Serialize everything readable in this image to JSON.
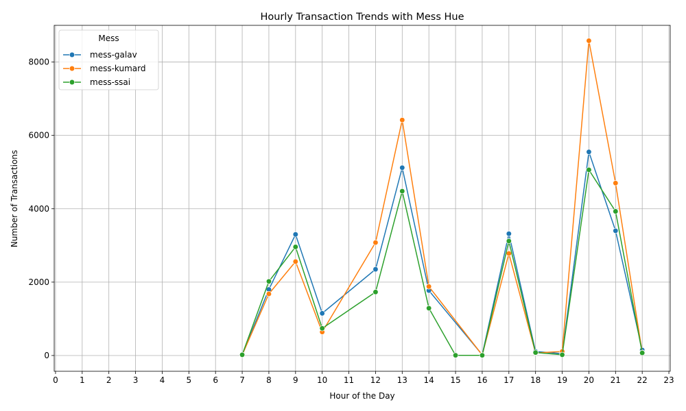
{
  "chart_data": {
    "type": "line",
    "title": "Hourly Transaction Trends with Mess Hue",
    "xlabel": "Hour of the Day",
    "ylabel": "Number of Transactions",
    "xlim": [
      -0.05,
      23.05
    ],
    "ylim": [
      -430,
      9000
    ],
    "xticks": [
      0,
      1,
      2,
      3,
      4,
      5,
      6,
      7,
      8,
      9,
      10,
      11,
      12,
      13,
      14,
      15,
      16,
      17,
      18,
      19,
      20,
      21,
      22,
      23
    ],
    "yticks": [
      0,
      2000,
      4000,
      6000,
      8000
    ],
    "grid": true,
    "legend": {
      "title": "Mess",
      "placement": "top-left"
    },
    "series": [
      {
        "name": "mess-galav",
        "color": "#1f77b4",
        "x": [
          7,
          8,
          9,
          10,
          12,
          13,
          14,
          16,
          17,
          18,
          19,
          20,
          21,
          22
        ],
        "values": [
          20,
          1800,
          3300,
          1150,
          2350,
          5120,
          1770,
          20,
          3320,
          110,
          50,
          5550,
          3400,
          150
        ]
      },
      {
        "name": "mess-kumard",
        "color": "#ff7f0e",
        "x": [
          7,
          8,
          9,
          10,
          12,
          13,
          14,
          16,
          17,
          18,
          19,
          20,
          21,
          22
        ],
        "values": [
          15,
          1680,
          2560,
          640,
          3080,
          6420,
          1880,
          15,
          2780,
          70,
          110,
          8580,
          4700,
          80
        ]
      },
      {
        "name": "mess-ssai",
        "color": "#2ca02c",
        "x": [
          7,
          8,
          9,
          10,
          12,
          13,
          14,
          15,
          16,
          17,
          18,
          19,
          20,
          21,
          22
        ],
        "values": [
          20,
          2020,
          2960,
          740,
          1730,
          4480,
          1290,
          5,
          5,
          3120,
          80,
          20,
          5060,
          3930,
          70
        ]
      }
    ]
  }
}
